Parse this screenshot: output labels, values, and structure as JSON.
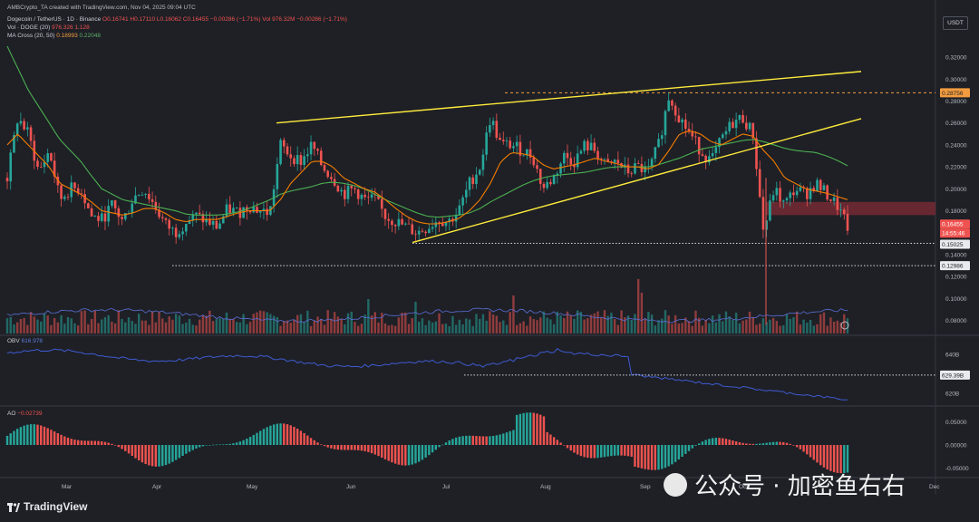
{
  "header": {
    "credit": "AMBCrypto_TA created with TradingView.com, Nov 04, 2025 09:04 UTC"
  },
  "legend": {
    "symbol": "Dogecoin / TetherUS · 1D · Binance",
    "ohlc": "O0.16741 H0.17110 L0.16062 C0.16455",
    "change": "−0.00286 (−1.71%)",
    "vol_label": "Vol 976.32M",
    "vol_change": "−0.00286 (−1.71%)",
    "vol_doge": "Vol · DOGE (20)",
    "vol_doge_vals": "976.326 1.128",
    "ma_cross": "MA Cross (20, 50)",
    "ma_val1": "0.18993",
    "ma_val2": "0.22048",
    "obv_label": "OBV",
    "obv_val": "616.978",
    "ao_label": "AO",
    "ao_val": "−0.02739"
  },
  "currency_button": "USDT",
  "logo": "TradingView",
  "watermark": "公众号 · 加密鱼右右",
  "colors": {
    "bg": "#1e2026",
    "up": "#26a69a",
    "down": "#ef5350",
    "ma_fast": "#f57c00",
    "ma_slow": "#4caf50",
    "trend": "#ffeb3b",
    "vol_ma": "#5b6fd6",
    "obv": "#3f5ad0",
    "zone": "#7a2a35",
    "dash_orange": "#f39c3f"
  },
  "chart_data": [
    {
      "type": "candlestick",
      "title": "Dogecoin / TetherUS · 1D · Binance",
      "x_ticks": [
        "Mar",
        "Apr",
        "May",
        "Jun",
        "Jul",
        "Aug",
        "Sep",
        "Oct",
        "Dec"
      ],
      "y_ticks": [
        "0.32000",
        "0.30000",
        "0.28000",
        "0.26000",
        "0.24000",
        "0.22000",
        "0.20000",
        "0.18000",
        "0.16000",
        "0.14000",
        "0.12000",
        "0.10000",
        "0.08000"
      ],
      "ylim": [
        0.068,
        0.335
      ],
      "close_path": [
        0.21,
        0.265,
        0.25,
        0.215,
        0.235,
        0.19,
        0.2,
        0.2,
        0.175,
        0.172,
        0.185,
        0.17,
        0.192,
        0.2,
        0.185,
        0.168,
        0.16,
        0.17,
        0.175,
        0.17,
        0.165,
        0.182,
        0.178,
        0.185,
        0.18,
        0.178,
        0.24,
        0.23,
        0.225,
        0.24,
        0.22,
        0.21,
        0.195,
        0.2,
        0.19,
        0.19,
        0.175,
        0.17,
        0.165,
        0.16,
        0.165,
        0.172,
        0.17,
        0.18,
        0.205,
        0.22,
        0.265,
        0.24,
        0.24,
        0.235,
        0.23,
        0.2,
        0.21,
        0.23,
        0.225,
        0.24,
        0.235,
        0.22,
        0.225,
        0.215,
        0.22,
        0.215,
        0.24,
        0.285,
        0.265,
        0.25,
        0.235,
        0.225,
        0.245,
        0.26,
        0.265,
        0.25,
        0.16,
        0.2,
        0.185,
        0.2,
        0.195,
        0.205,
        0.195,
        0.185,
        0.165
      ],
      "ma_fast": [
        0.24,
        0.25,
        0.24,
        0.23,
        0.22,
        0.205,
        0.2,
        0.195,
        0.188,
        0.18,
        0.178,
        0.176,
        0.178,
        0.182,
        0.182,
        0.178,
        0.172,
        0.17,
        0.172,
        0.172,
        0.172,
        0.175,
        0.178,
        0.18,
        0.18,
        0.18,
        0.19,
        0.205,
        0.215,
        0.225,
        0.225,
        0.22,
        0.21,
        0.205,
        0.2,
        0.197,
        0.19,
        0.182,
        0.175,
        0.17,
        0.168,
        0.168,
        0.17,
        0.173,
        0.18,
        0.19,
        0.205,
        0.225,
        0.233,
        0.232,
        0.23,
        0.222,
        0.218,
        0.22,
        0.222,
        0.225,
        0.228,
        0.225,
        0.223,
        0.22,
        0.22,
        0.218,
        0.222,
        0.235,
        0.25,
        0.253,
        0.25,
        0.243,
        0.24,
        0.245,
        0.25,
        0.248,
        0.235,
        0.225,
        0.21,
        0.205,
        0.2,
        0.198,
        0.196,
        0.193,
        0.19
      ],
      "ma_slow": [
        0.33,
        0.31,
        0.29,
        0.275,
        0.26,
        0.245,
        0.235,
        0.225,
        0.212,
        0.2,
        0.195,
        0.19,
        0.188,
        0.186,
        0.184,
        0.182,
        0.18,
        0.177,
        0.176,
        0.176,
        0.176,
        0.177,
        0.179,
        0.182,
        0.186,
        0.19,
        0.195,
        0.198,
        0.2,
        0.202,
        0.205,
        0.206,
        0.205,
        0.203,
        0.2,
        0.195,
        0.19,
        0.186,
        0.182,
        0.178,
        0.175,
        0.174,
        0.175,
        0.176,
        0.178,
        0.182,
        0.188,
        0.193,
        0.198,
        0.203,
        0.207,
        0.21,
        0.212,
        0.213,
        0.214,
        0.215,
        0.217,
        0.219,
        0.22,
        0.22,
        0.22,
        0.22,
        0.222,
        0.225,
        0.228,
        0.232,
        0.236,
        0.238,
        0.24,
        0.242,
        0.244,
        0.245,
        0.243,
        0.24,
        0.237,
        0.235,
        0.234,
        0.233,
        0.23,
        0.226,
        0.221
      ],
      "annotations": {
        "resistance_level": "0.28756",
        "current_price": "0.16455",
        "current_countdown": "14:55:46",
        "support_1": "0.15025",
        "support_2": "0.12986",
        "rising_wedge": "upper line 0.26 (May) → 0.307 (Oct); lower line 0.153 (late Jun) → 0.265 (Oct)",
        "supply_zone": [
          0.176,
          0.188
        ]
      }
    },
    {
      "type": "line",
      "title": "OBV",
      "y_ticks": [
        "640B",
        "629.39B",
        "620B"
      ],
      "level_marker": "629.39B"
    },
    {
      "type": "histogram",
      "title": "AO",
      "y_ticks": [
        "0.05000",
        "0.00000",
        "-0.05000"
      ],
      "current": "−0.02739"
    }
  ]
}
